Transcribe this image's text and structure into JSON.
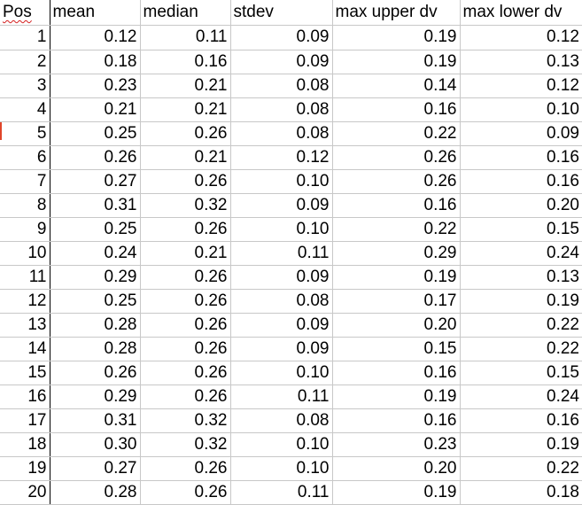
{
  "sheet": {
    "headers": {
      "pos": "Pos",
      "mean": "mean",
      "median": "median",
      "stdev": "stdev",
      "max_upper_dv": "max upper dv",
      "max_lower_dv": "max lower dv"
    },
    "rows": [
      {
        "pos": "1",
        "mean": "0.12",
        "median": "0.11",
        "stdev": "0.09",
        "max_upper_dv": "0.19",
        "max_lower_dv": "0.12"
      },
      {
        "pos": "2",
        "mean": "0.18",
        "median": "0.16",
        "stdev": "0.09",
        "max_upper_dv": "0.19",
        "max_lower_dv": "0.13"
      },
      {
        "pos": "3",
        "mean": "0.23",
        "median": "0.21",
        "stdev": "0.08",
        "max_upper_dv": "0.14",
        "max_lower_dv": "0.12"
      },
      {
        "pos": "4",
        "mean": "0.21",
        "median": "0.21",
        "stdev": "0.08",
        "max_upper_dv": "0.16",
        "max_lower_dv": "0.10"
      },
      {
        "pos": "5",
        "mean": "0.25",
        "median": "0.26",
        "stdev": "0.08",
        "max_upper_dv": "0.22",
        "max_lower_dv": "0.09"
      },
      {
        "pos": "6",
        "mean": "0.26",
        "median": "0.21",
        "stdev": "0.12",
        "max_upper_dv": "0.26",
        "max_lower_dv": "0.16"
      },
      {
        "pos": "7",
        "mean": "0.27",
        "median": "0.26",
        "stdev": "0.10",
        "max_upper_dv": "0.26",
        "max_lower_dv": "0.16"
      },
      {
        "pos": "8",
        "mean": "0.31",
        "median": "0.32",
        "stdev": "0.09",
        "max_upper_dv": "0.16",
        "max_lower_dv": "0.20"
      },
      {
        "pos": "9",
        "mean": "0.25",
        "median": "0.26",
        "stdev": "0.10",
        "max_upper_dv": "0.22",
        "max_lower_dv": "0.15"
      },
      {
        "pos": "10",
        "mean": "0.24",
        "median": "0.21",
        "stdev": "0.11",
        "max_upper_dv": "0.29",
        "max_lower_dv": "0.24"
      },
      {
        "pos": "11",
        "mean": "0.29",
        "median": "0.26",
        "stdev": "0.09",
        "max_upper_dv": "0.19",
        "max_lower_dv": "0.13"
      },
      {
        "pos": "12",
        "mean": "0.25",
        "median": "0.26",
        "stdev": "0.08",
        "max_upper_dv": "0.17",
        "max_lower_dv": "0.19"
      },
      {
        "pos": "13",
        "mean": "0.28",
        "median": "0.26",
        "stdev": "0.09",
        "max_upper_dv": "0.20",
        "max_lower_dv": "0.22"
      },
      {
        "pos": "14",
        "mean": "0.28",
        "median": "0.26",
        "stdev": "0.09",
        "max_upper_dv": "0.15",
        "max_lower_dv": "0.22"
      },
      {
        "pos": "15",
        "mean": "0.26",
        "median": "0.26",
        "stdev": "0.10",
        "max_upper_dv": "0.16",
        "max_lower_dv": "0.15"
      },
      {
        "pos": "16",
        "mean": "0.29",
        "median": "0.26",
        "stdev": "0.11",
        "max_upper_dv": "0.19",
        "max_lower_dv": "0.24"
      },
      {
        "pos": "17",
        "mean": "0.31",
        "median": "0.32",
        "stdev": "0.08",
        "max_upper_dv": "0.16",
        "max_lower_dv": "0.16"
      },
      {
        "pos": "18",
        "mean": "0.30",
        "median": "0.32",
        "stdev": "0.10",
        "max_upper_dv": "0.23",
        "max_lower_dv": "0.19"
      },
      {
        "pos": "19",
        "mean": "0.27",
        "median": "0.26",
        "stdev": "0.10",
        "max_upper_dv": "0.20",
        "max_lower_dv": "0.22"
      },
      {
        "pos": "20",
        "mean": "0.28",
        "median": "0.26",
        "stdev": "0.11",
        "max_upper_dv": "0.19",
        "max_lower_dv": "0.18"
      }
    ],
    "colors": {
      "gridline": "#c8c8c8",
      "spellcheck_underline": "#d42020",
      "row_marker": "#e0452a"
    }
  }
}
